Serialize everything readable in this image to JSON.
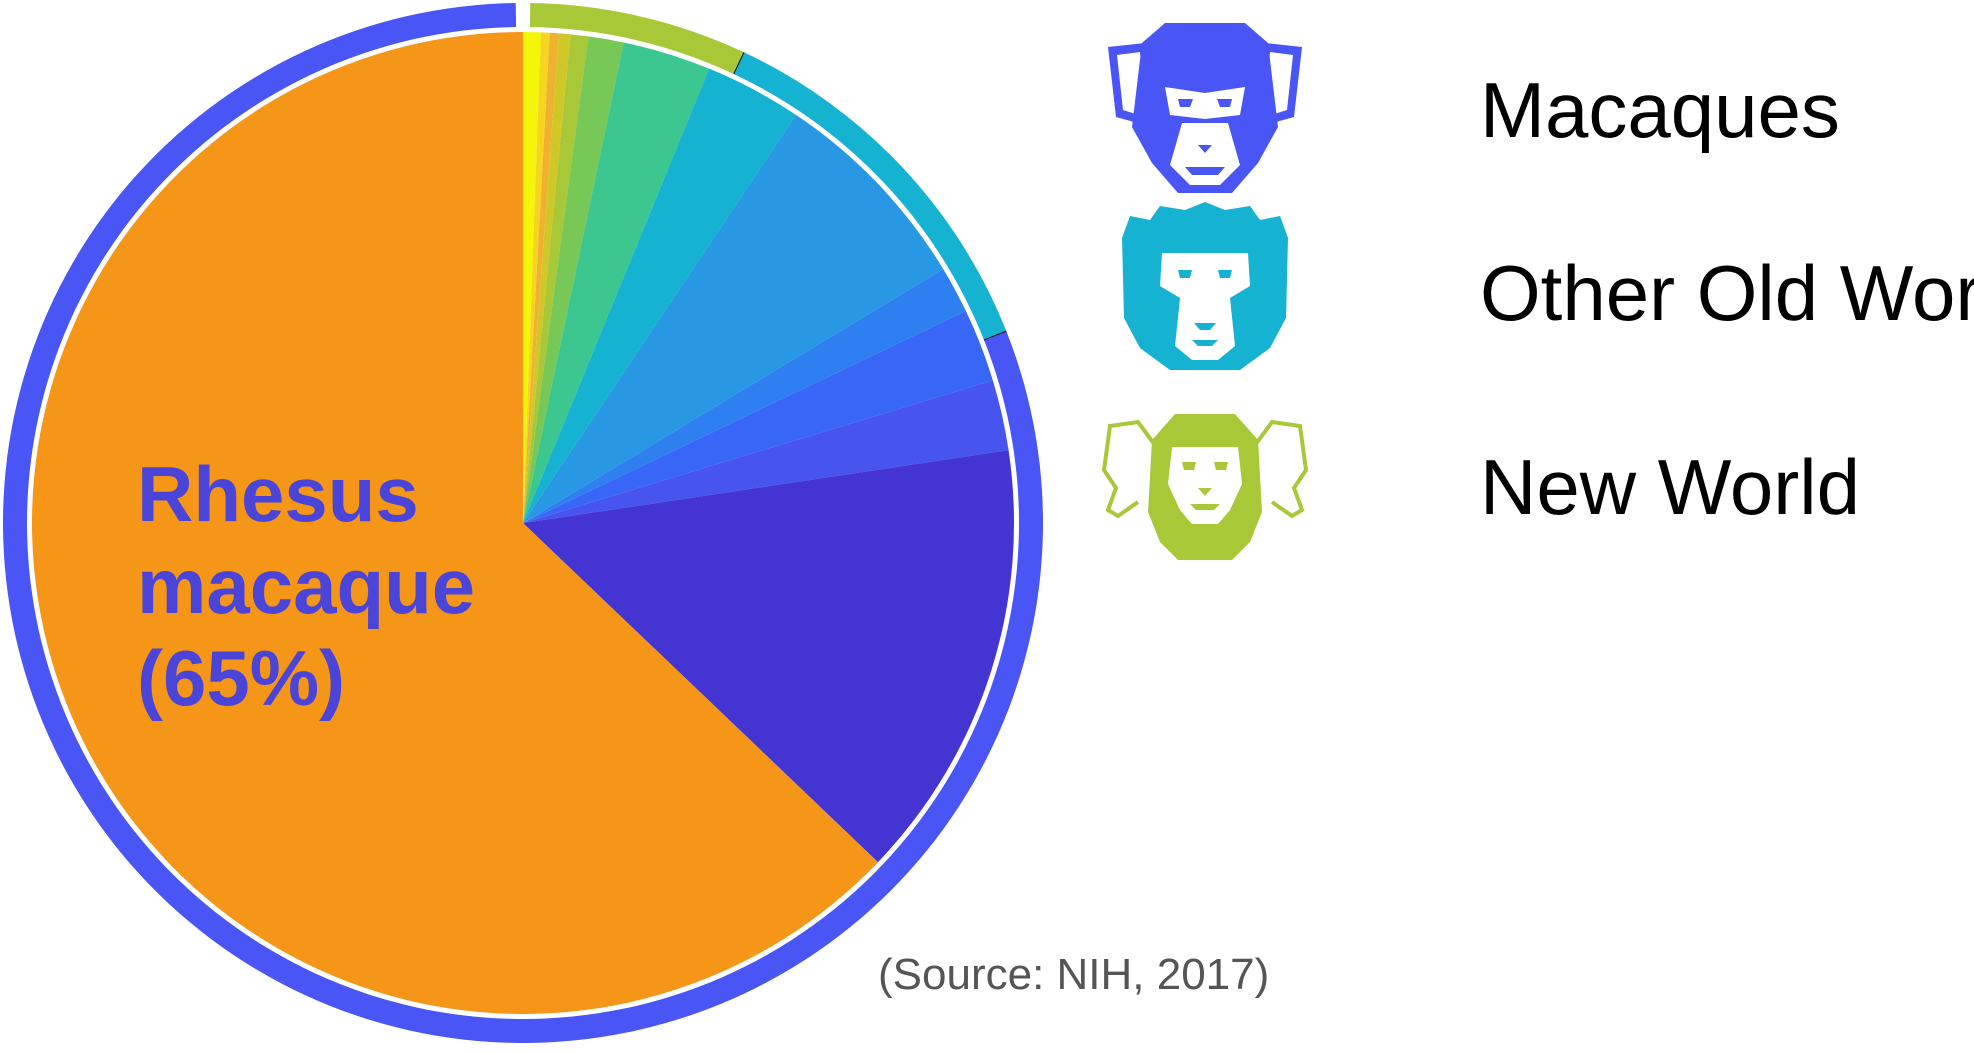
{
  "chart_data": {
    "type": "pie",
    "slices": [
      {
        "value": 0.6,
        "color": "#f5f50a"
      },
      {
        "value": 0.3,
        "color": "#f5d520"
      },
      {
        "value": 0.3,
        "color": "#f0b030"
      },
      {
        "value": 0.4,
        "color": "#d0c828"
      },
      {
        "value": 0.6,
        "color": "#a8c838"
      },
      {
        "value": 1.2,
        "color": "#78c858"
      },
      {
        "value": 3.0,
        "color": "#3cc690"
      },
      {
        "value": 3.3,
        "color": "#16b2d2"
      },
      {
        "value": 7.2,
        "color": "#2898e4"
      },
      {
        "value": 1.6,
        "color": "#2e80f0"
      },
      {
        "value": 2.5,
        "color": "#3866f6"
      },
      {
        "value": 2.4,
        "color": "#4854ee"
      },
      {
        "value": 15.0,
        "color": "#4434d2"
      },
      {
        "value": 65.0,
        "color": "#f59618",
        "label": [
          "Rhesus",
          "macaque",
          "(65%)"
        ]
      }
    ],
    "groups": [
      {
        "name": "New World",
        "value": 7.0,
        "color": "#a8c838"
      },
      {
        "name": "Other Old World",
        "value": 12.0,
        "color": "#16b2d2"
      },
      {
        "name": "Macaques",
        "value": 81.0,
        "color": "#4a55f5"
      }
    ]
  },
  "pie_label": {
    "line1": "Rhesus",
    "line2": "macaque",
    "line3": "(65%)"
  },
  "legend": [
    {
      "label": "Macaques",
      "icon": "macaque-face-icon",
      "color": "#4a55f5"
    },
    {
      "label": "Other Old World",
      "icon": "old-world-monkey-face-icon",
      "color": "#16b2d2"
    },
    {
      "label": "New World",
      "icon": "new-world-monkey-face-icon",
      "color": "#a8c838"
    }
  ],
  "source": "(Source: NIH, 2017)"
}
